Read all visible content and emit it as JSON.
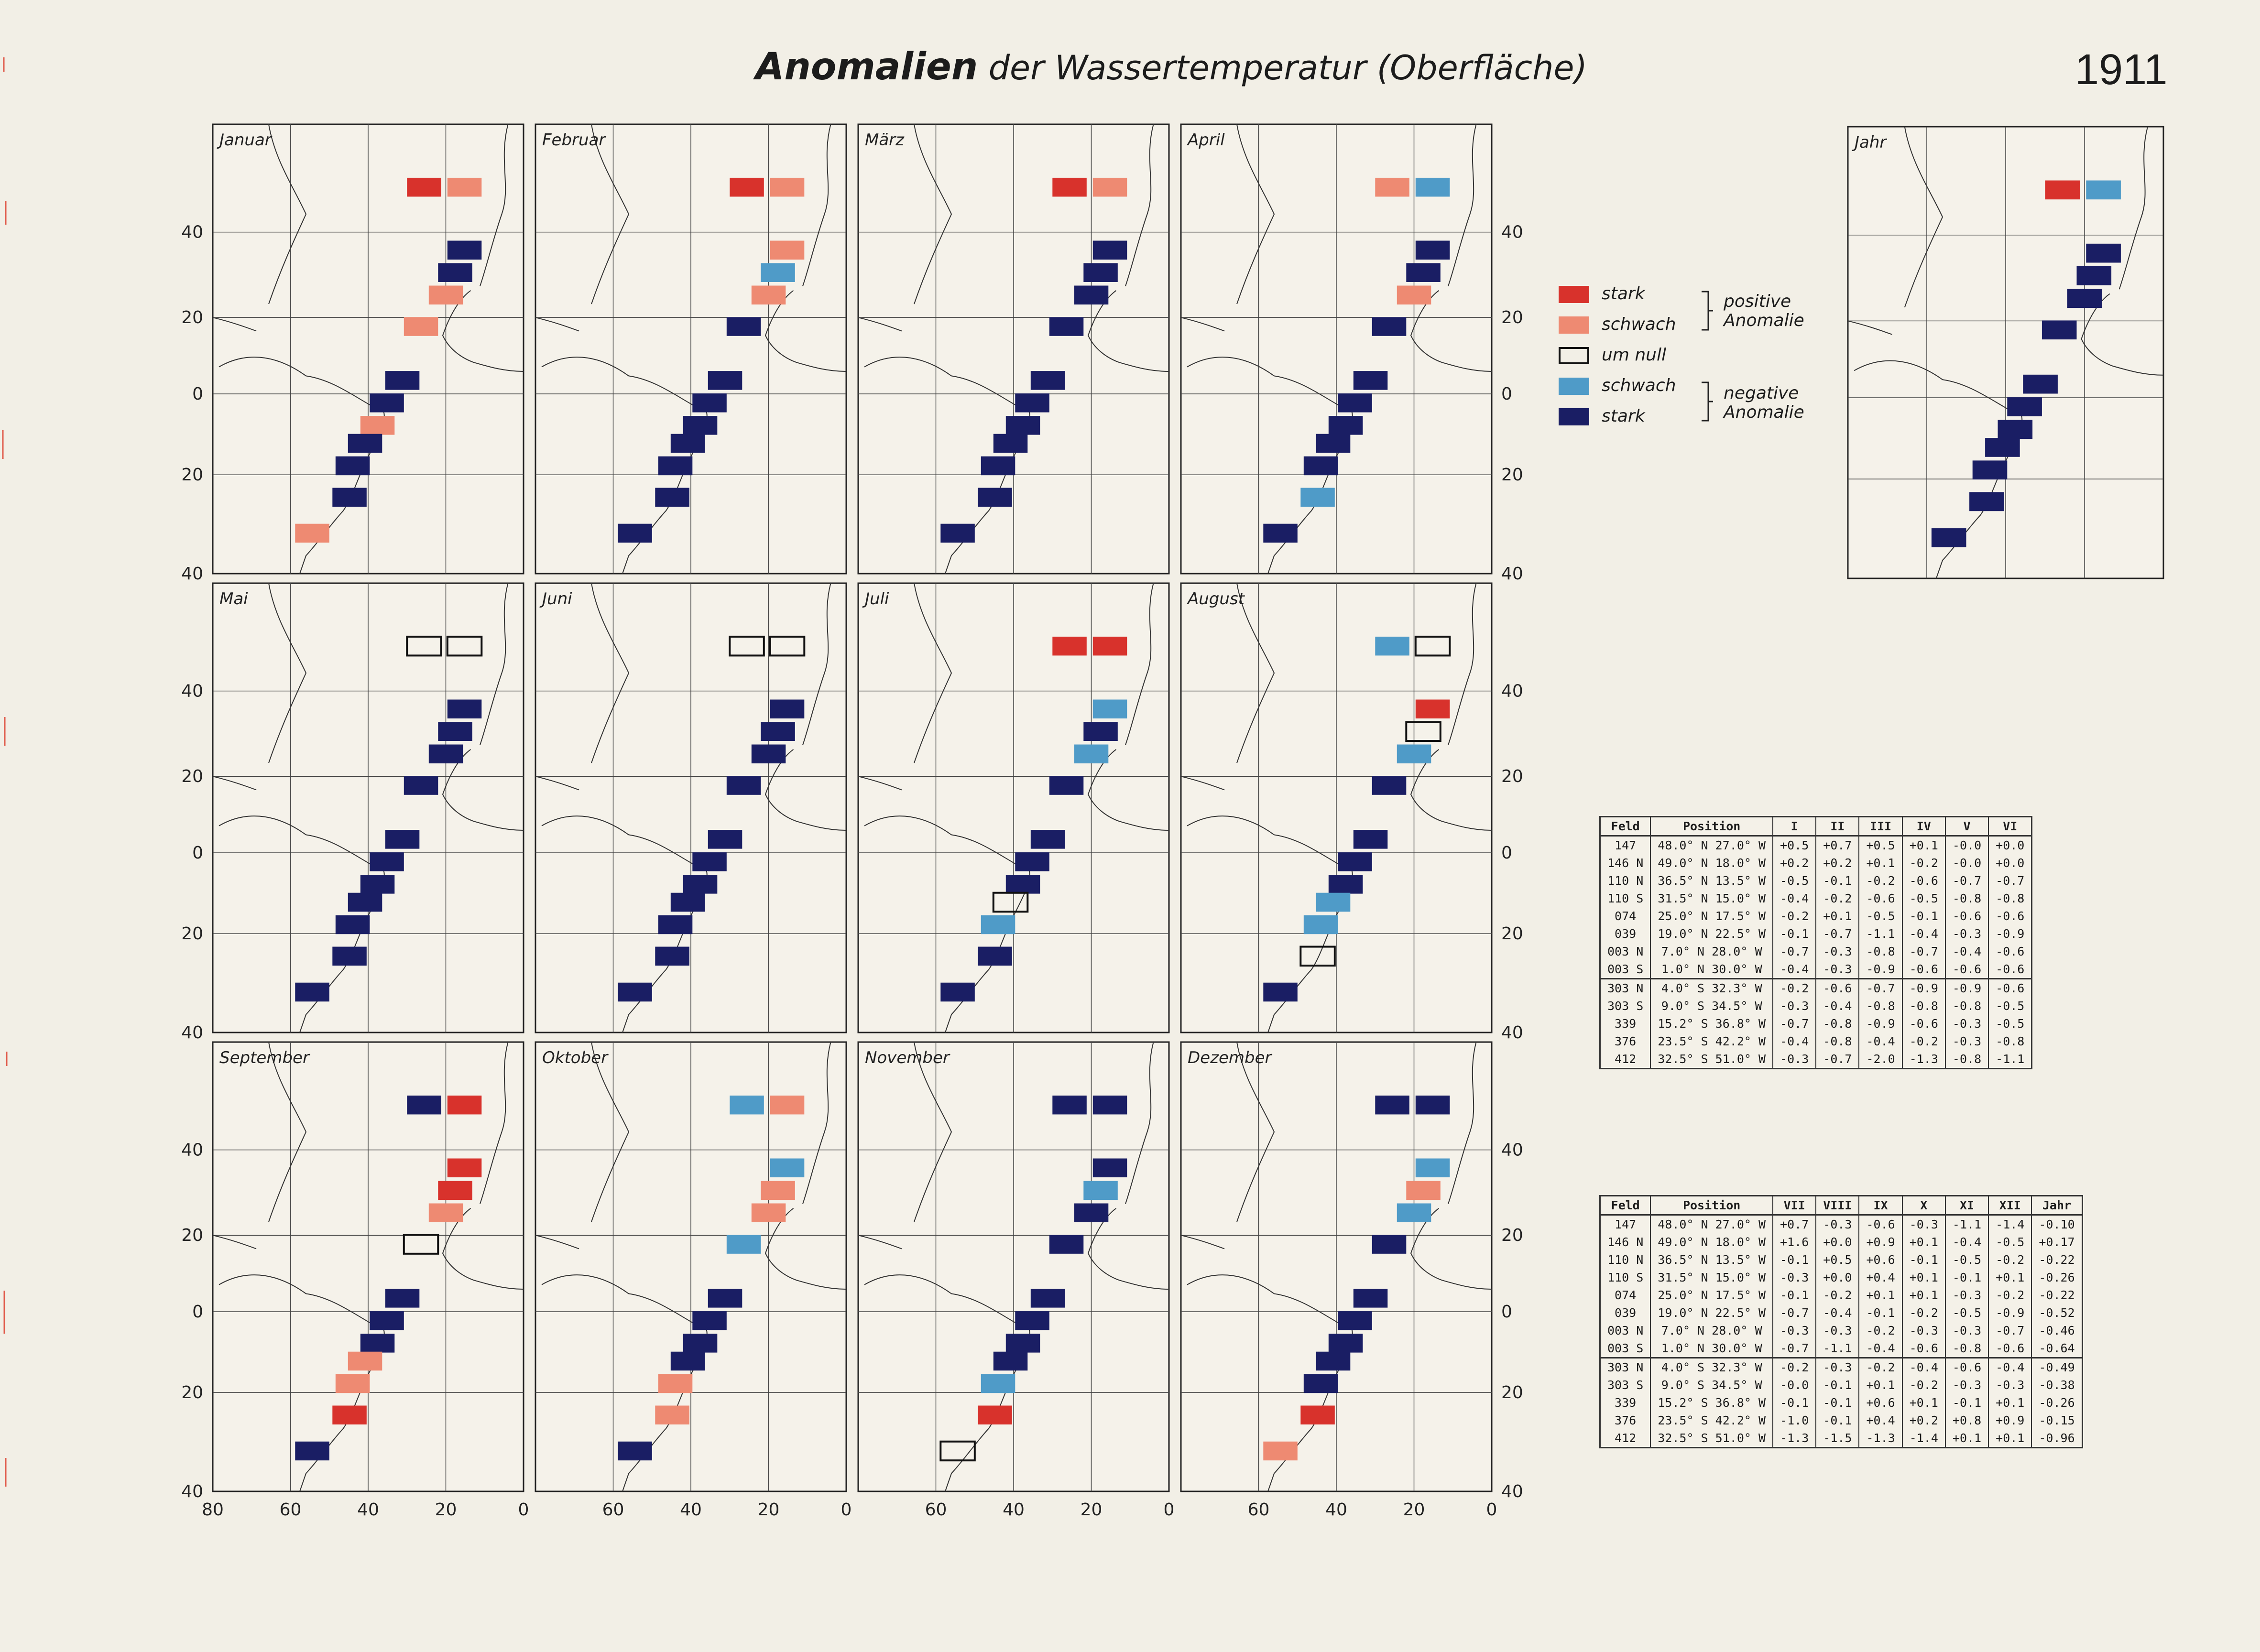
{
  "title": {
    "main": "Anomalien",
    "rest": "der Wassertemperatur (Oberfläche)",
    "year": "1911"
  },
  "colors": {
    "stark_pos": "#d8322c",
    "schwach_pos": "#ee8a72",
    "schwach_neg": "#4f9bc8",
    "stark_neg": "#1a1e64"
  },
  "legend": {
    "items": [
      {
        "label": "stark",
        "cat": "P"
      },
      {
        "label": "schwach",
        "cat": "p"
      },
      {
        "label": "um null",
        "cat": "0"
      },
      {
        "label": "schwach",
        "cat": "n"
      },
      {
        "label": "stark",
        "cat": "N"
      }
    ],
    "positive": [
      "positive",
      "Anomalie"
    ],
    "negative": [
      "negative",
      "Anomalie"
    ]
  },
  "lat_labels": [
    "40",
    "20",
    "0",
    "20",
    "40"
  ],
  "lon_labels": [
    "80",
    "60",
    "40",
    "20",
    "0"
  ],
  "months": [
    "Januar",
    "Februar",
    "März",
    "April",
    "Mai",
    "Juni",
    "Juli",
    "August",
    "September",
    "Oktober",
    "November",
    "Dezember"
  ],
  "year_panel": "Jahr",
  "fields": [
    "147",
    "146 N",
    "110 N",
    "110 S",
    "074",
    "039",
    "003 N",
    "003 S",
    "303 N",
    "303 S",
    "339",
    "376",
    "412"
  ],
  "map_symbols": [
    [
      "P",
      "p",
      "N",
      "N",
      "p",
      "p",
      "N",
      "N",
      "p",
      "N",
      "N",
      "N",
      "p"
    ],
    [
      "P",
      "p",
      "p",
      "n",
      "p",
      "N",
      "N",
      "N",
      "N",
      "N",
      "N",
      "N",
      "N"
    ],
    [
      "P",
      "p",
      "N",
      "N",
      "N",
      "N",
      "N",
      "N",
      "N",
      "N",
      "N",
      "N",
      "N"
    ],
    [
      "p",
      "n",
      "N",
      "N",
      "p",
      "N",
      "N",
      "N",
      "N",
      "N",
      "N",
      "n",
      "N"
    ],
    [
      "0",
      "0",
      "N",
      "N",
      "N",
      "N",
      "N",
      "N",
      "N",
      "N",
      "N",
      "N",
      "N"
    ],
    [
      "0",
      "0",
      "N",
      "N",
      "N",
      "N",
      "N",
      "N",
      "N",
      "N",
      "N",
      "N",
      "N"
    ],
    [
      "P",
      "P",
      "n",
      "N",
      "n",
      "N",
      "N",
      "N",
      "N",
      "0",
      "n",
      "N",
      "N"
    ],
    [
      "n",
      "0",
      "P",
      "0",
      "n",
      "N",
      "N",
      "N",
      "N",
      "n",
      "n",
      "0",
      "N"
    ],
    [
      "N",
      "P",
      "P",
      "P",
      "p",
      "0",
      "N",
      "N",
      "N",
      "p",
      "p",
      "P",
      "N"
    ],
    [
      "n",
      "p",
      "n",
      "p",
      "p",
      "n",
      "N",
      "N",
      "N",
      "N",
      "p",
      "p",
      "N"
    ],
    [
      "N",
      "N",
      "N",
      "n",
      "N",
      "N",
      "N",
      "N",
      "N",
      "N",
      "n",
      "P",
      "0"
    ],
    [
      "N",
      "N",
      "n",
      "p",
      "n",
      "N",
      "N",
      "N",
      "N",
      "N",
      "N",
      "P",
      "p"
    ]
  ],
  "year_symbols": [
    "P",
    "n",
    "N",
    "N",
    "N",
    "N",
    "N",
    "N",
    "N",
    "N",
    "N",
    "N",
    "N"
  ],
  "table1": {
    "headers": [
      "Feld",
      "Position",
      "I",
      "II",
      "III",
      "IV",
      "V",
      "VI"
    ],
    "rows": [
      [
        "147",
        "48.0° N 27.0° W",
        "+0.5",
        "+0.7",
        "+0.5",
        "+0.1",
        "-0.0",
        "+0.0"
      ],
      [
        "146 N",
        "49.0° N 18.0° W",
        "+0.2",
        "+0.2",
        "+0.1",
        "-0.2",
        "-0.0",
        "+0.0"
      ],
      [
        "110 N",
        "36.5° N 13.5° W",
        "-0.5",
        "-0.1",
        "-0.2",
        "-0.6",
        "-0.7",
        "-0.7"
      ],
      [
        "110 S",
        "31.5° N 15.0° W",
        "-0.4",
        "-0.2",
        "-0.6",
        "-0.5",
        "-0.8",
        "-0.8"
      ],
      [
        "074",
        "25.0° N 17.5° W",
        "-0.2",
        "+0.1",
        "-0.5",
        "-0.1",
        "-0.6",
        "-0.6"
      ],
      [
        "039",
        "19.0° N 22.5° W",
        "-0.1",
        "-0.7",
        "-1.1",
        "-0.4",
        "-0.3",
        "-0.9"
      ],
      [
        "003 N",
        "7.0° N 28.0° W",
        "-0.7",
        "-0.3",
        "-0.8",
        "-0.7",
        "-0.4",
        "-0.6"
      ],
      [
        "003 S",
        "1.0° N 30.0° W",
        "-0.4",
        "-0.3",
        "-0.9",
        "-0.6",
        "-0.6",
        "-0.6"
      ],
      [
        "303 N",
        "4.0° S 32.3° W",
        "-0.2",
        "-0.6",
        "-0.7",
        "-0.9",
        "-0.9",
        "-0.6"
      ],
      [
        "303 S",
        "9.0° S 34.5° W",
        "-0.3",
        "-0.4",
        "-0.8",
        "-0.8",
        "-0.8",
        "-0.5"
      ],
      [
        "339",
        "15.2° S 36.8° W",
        "-0.7",
        "-0.8",
        "-0.9",
        "-0.6",
        "-0.3",
        "-0.5"
      ],
      [
        "376",
        "23.5° S 42.2° W",
        "-0.4",
        "-0.8",
        "-0.4",
        "-0.2",
        "-0.3",
        "-0.8"
      ],
      [
        "412",
        "32.5° S 51.0° W",
        "-0.3",
        "-0.7",
        "-2.0",
        "-1.3",
        "-0.8",
        "-1.1"
      ]
    ]
  },
  "table2": {
    "headers": [
      "Feld",
      "Position",
      "VII",
      "VIII",
      "IX",
      "X",
      "XI",
      "XII",
      "Jahr"
    ],
    "rows": [
      [
        "147",
        "48.0° N 27.0° W",
        "+0.7",
        "-0.3",
        "-0.6",
        "-0.3",
        "-1.1",
        "-1.4",
        "-0.10"
      ],
      [
        "146 N",
        "49.0° N 18.0° W",
        "+1.6",
        "+0.0",
        "+0.9",
        "+0.1",
        "-0.4",
        "-0.5",
        "+0.17"
      ],
      [
        "110 N",
        "36.5° N 13.5° W",
        "-0.1",
        "+0.5",
        "+0.6",
        "-0.1",
        "-0.5",
        "-0.2",
        "-0.22"
      ],
      [
        "110 S",
        "31.5° N 15.0° W",
        "-0.3",
        "+0.0",
        "+0.4",
        "+0.1",
        "-0.1",
        "+0.1",
        "-0.26"
      ],
      [
        "074",
        "25.0° N 17.5° W",
        "-0.1",
        "-0.2",
        "+0.1",
        "+0.1",
        "-0.3",
        "-0.2",
        "-0.22"
      ],
      [
        "039",
        "19.0° N 22.5° W",
        "-0.7",
        "-0.4",
        "-0.1",
        "-0.2",
        "-0.5",
        "-0.9",
        "-0.52"
      ],
      [
        "003 N",
        "7.0° N 28.0° W",
        "-0.3",
        "-0.3",
        "-0.2",
        "-0.3",
        "-0.3",
        "-0.7",
        "-0.46"
      ],
      [
        "003 S",
        "1.0° N 30.0° W",
        "-0.7",
        "-1.1",
        "-0.4",
        "-0.6",
        "-0.8",
        "-0.6",
        "-0.64"
      ],
      [
        "303 N",
        "4.0° S 32.3° W",
        "-0.2",
        "-0.3",
        "-0.2",
        "-0.4",
        "-0.6",
        "-0.4",
        "-0.49"
      ],
      [
        "303 S",
        "9.0° S 34.5° W",
        "-0.0",
        "-0.1",
        "+0.1",
        "-0.2",
        "-0.3",
        "-0.3",
        "-0.38"
      ],
      [
        "339",
        "15.2° S 36.8° W",
        "-0.1",
        "-0.1",
        "+0.6",
        "+0.1",
        "-0.1",
        "+0.1",
        "-0.26"
      ],
      [
        "376",
        "23.5° S 42.2° W",
        "-1.0",
        "-0.1",
        "+0.4",
        "+0.2",
        "+0.8",
        "+0.9",
        "-0.15"
      ],
      [
        "412",
        "32.5° S 51.0° W",
        "-1.3",
        "-1.5",
        "-1.3",
        "-1.4",
        "+0.1",
        "+0.1",
        "-0.96"
      ]
    ]
  }
}
